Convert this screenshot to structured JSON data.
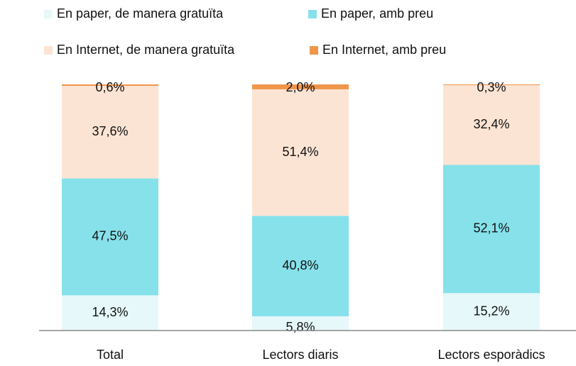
{
  "chart_data": {
    "type": "stacked_bar",
    "categories": [
      "Total",
      "Lectors diaris",
      "Lectors esporàdics"
    ],
    "series": [
      {
        "name": "En paper, de manera gratuïta",
        "color": "#e6f8fa",
        "values": [
          14.3,
          5.8,
          15.2
        ],
        "value_labels": [
          "14,3%",
          "5,8%",
          "15,2%"
        ]
      },
      {
        "name": "En paper, amb preu",
        "color": "#86e1ea",
        "values": [
          47.5,
          40.8,
          52.1
        ],
        "value_labels": [
          "47,5%",
          "40,8%",
          "52,1%"
        ]
      },
      {
        "name": "En Internet, de manera gratuïta",
        "color": "#fce4d4",
        "values": [
          37.6,
          51.4,
          32.4
        ],
        "value_labels": [
          "37,6%",
          "51,4%",
          "32,4%"
        ]
      },
      {
        "name": "En Internet, amb preu",
        "color": "#f0964b",
        "values": [
          0.6,
          2.0,
          0.3
        ],
        "value_labels": [
          "0,6%",
          "2,0%",
          "0,3%"
        ]
      }
    ],
    "ylim": [
      0,
      100
    ]
  }
}
